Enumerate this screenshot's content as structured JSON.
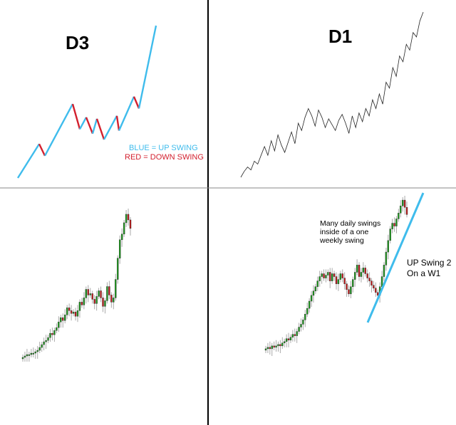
{
  "colors": {
    "up_swing": "#3fbcec",
    "down_swing": "#d3202e",
    "bull_candle": "#1f9d1f",
    "bear_candle": "#c81e1e",
    "wick": "#aaaaaa",
    "divider": "#000000",
    "line": "#222222"
  },
  "chart_data": [
    {
      "type": "line",
      "title": "D3",
      "legend": [
        {
          "label": "BLUE = UP SWING",
          "color": "#3fbcec"
        },
        {
          "label": "RED = DOWN SWING",
          "color": "#d3202e"
        }
      ],
      "series": [
        {
          "values": [
            5,
            28,
            20,
            55,
            38,
            46,
            35,
            45,
            31,
            47,
            37,
            60,
            52,
            108
          ],
          "colors": [
            "up",
            "down",
            "up",
            "down",
            "up",
            "down",
            "up",
            "down",
            "up",
            "down",
            "up",
            "down",
            "up"
          ]
        }
      ]
    },
    {
      "type": "line",
      "title": "D1",
      "series": [
        {
          "values": [
            5,
            9,
            12,
            10,
            16,
            14,
            20,
            26,
            20,
            30,
            23,
            34,
            27,
            22,
            29,
            36,
            28,
            42,
            37,
            46,
            52,
            47,
            40,
            51,
            46,
            39,
            45,
            41,
            37,
            44,
            48,
            42,
            35,
            47,
            39,
            49,
            43,
            52,
            47,
            58,
            52,
            62,
            55,
            70,
            66,
            80,
            74,
            88,
            84,
            96,
            92,
            104,
            101,
            112,
            118
          ]
        }
      ]
    },
    {
      "type": "candlestick",
      "series": [
        {
          "close": [
            5,
            6,
            7,
            7,
            8,
            8,
            9,
            10,
            12,
            14,
            16,
            17,
            19,
            22,
            21,
            24,
            26,
            30,
            33,
            31,
            35,
            40,
            38,
            36,
            37,
            34,
            38,
            44,
            42,
            47,
            53,
            49,
            50,
            46,
            43,
            48,
            52,
            47,
            41,
            45,
            55,
            49,
            44,
            47,
            60,
            75,
            88,
            92,
            100,
            106,
            102,
            96
          ]
        }
      ]
    },
    {
      "type": "candlestick",
      "annotations": [
        {
          "text_lines": [
            "Many daily swings",
            "inside of a one",
            "weekly swing"
          ]
        },
        {
          "text_lines": [
            "UP Swing 2",
            "On a W1"
          ]
        }
      ],
      "series": [
        {
          "close": [
            5,
            6,
            5,
            7,
            6,
            7,
            8,
            7,
            9,
            10,
            12,
            11,
            13,
            15,
            14,
            17,
            20,
            22,
            25,
            29,
            33,
            38,
            42,
            45,
            48,
            52,
            55,
            57,
            54,
            56,
            58,
            52,
            57,
            55,
            50,
            53,
            57,
            54,
            50,
            46,
            43,
            48,
            53,
            58,
            63,
            55,
            58,
            61,
            57,
            54,
            52,
            49,
            47,
            44,
            42,
            48,
            55,
            63,
            72,
            80,
            88,
            92,
            90,
            95,
            99,
            104,
            108,
            103,
            98
          ]
        }
      ],
      "trendline": {
        "from": [
          0,
          0
        ],
        "to": [
          1,
          1
        ]
      }
    }
  ]
}
